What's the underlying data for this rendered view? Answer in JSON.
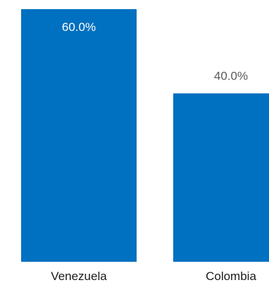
{
  "chart_data": {
    "type": "bar",
    "categories": [
      "Venezuela",
      "Colombia"
    ],
    "values": [
      60.0,
      40.0
    ],
    "data_labels": [
      "60.0%",
      "40.0%"
    ],
    "ylim": [
      0,
      60
    ],
    "bar_color": "#0070c0",
    "label_inside_color": "#ffffff",
    "label_outside_color": "#595959",
    "grid": false,
    "legend": "none"
  }
}
